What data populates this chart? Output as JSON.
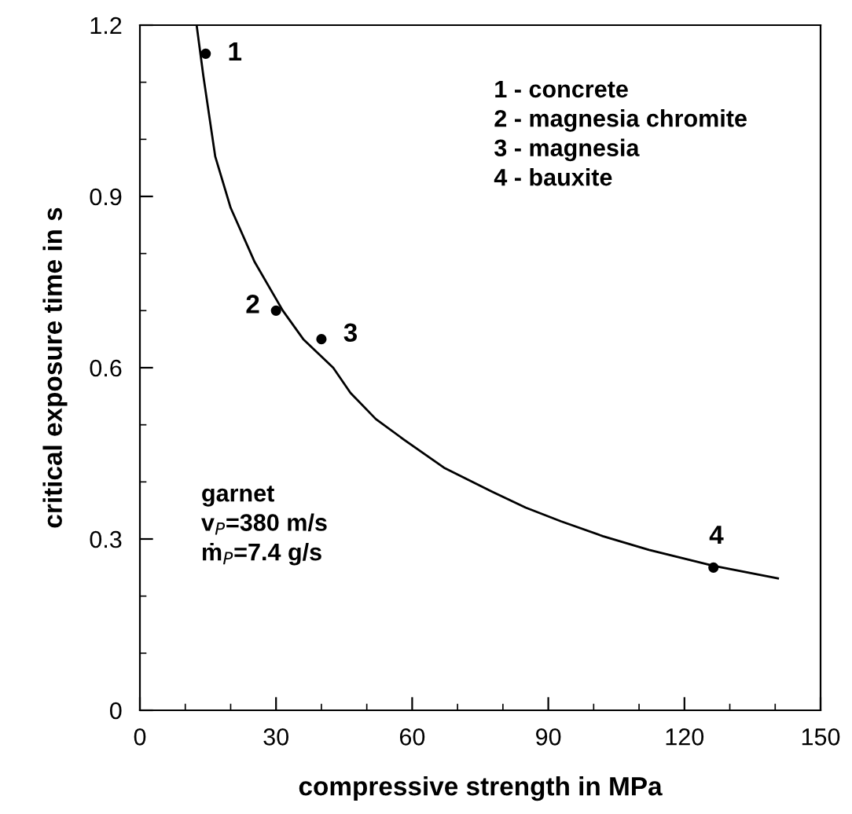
{
  "chart_data": {
    "type": "line",
    "xlabel": "compressive strength in MPa",
    "ylabel": "critical exposure time in s",
    "xlim": [
      0,
      150
    ],
    "ylim": [
      0,
      1.2
    ],
    "xticks": [
      0,
      30,
      60,
      90,
      120,
      150
    ],
    "yticks": [
      0,
      0.3,
      0.6,
      0.9,
      1.2
    ],
    "grid": false,
    "series": [
      {
        "color": "#000000",
        "marker": "none",
        "line_style": "solid",
        "x": [
          12.5,
          14,
          16.6,
          20,
          25.3,
          31.5,
          36,
          42.6,
          46.4,
          52,
          58.2,
          67,
          77.6,
          85,
          92.8,
          102,
          112.2,
          126.4,
          140.6
        ],
        "values": [
          1.2,
          1.11,
          0.97,
          0.88,
          0.785,
          0.7,
          0.65,
          0.6,
          0.556,
          0.51,
          0.474,
          0.425,
          0.383,
          0.355,
          0.331,
          0.305,
          0.281,
          0.253,
          0.231
        ]
      },
      {
        "type": "scatter",
        "color": "#000000",
        "marker": "circle",
        "x": [
          14.5,
          30,
          40,
          126.4
        ],
        "values": [
          1.15,
          0.7,
          0.65,
          0.25
        ]
      }
    ],
    "annotations": [
      {
        "text": "1",
        "x": 14.5,
        "y": 1.15
      },
      {
        "text": "2",
        "x": 30,
        "y": 0.7
      },
      {
        "text": "3",
        "x": 40,
        "y": 0.65
      },
      {
        "text": "4",
        "x": 126.4,
        "y": 0.25
      },
      "1 - concrete\n2 - magnesia chromite\n3 - magnesia\n4 - bauxite",
      "garnet\nv$_{P}$=380 m/s\nṁ$_{P}$=7.4 g/s"
    ]
  }
}
